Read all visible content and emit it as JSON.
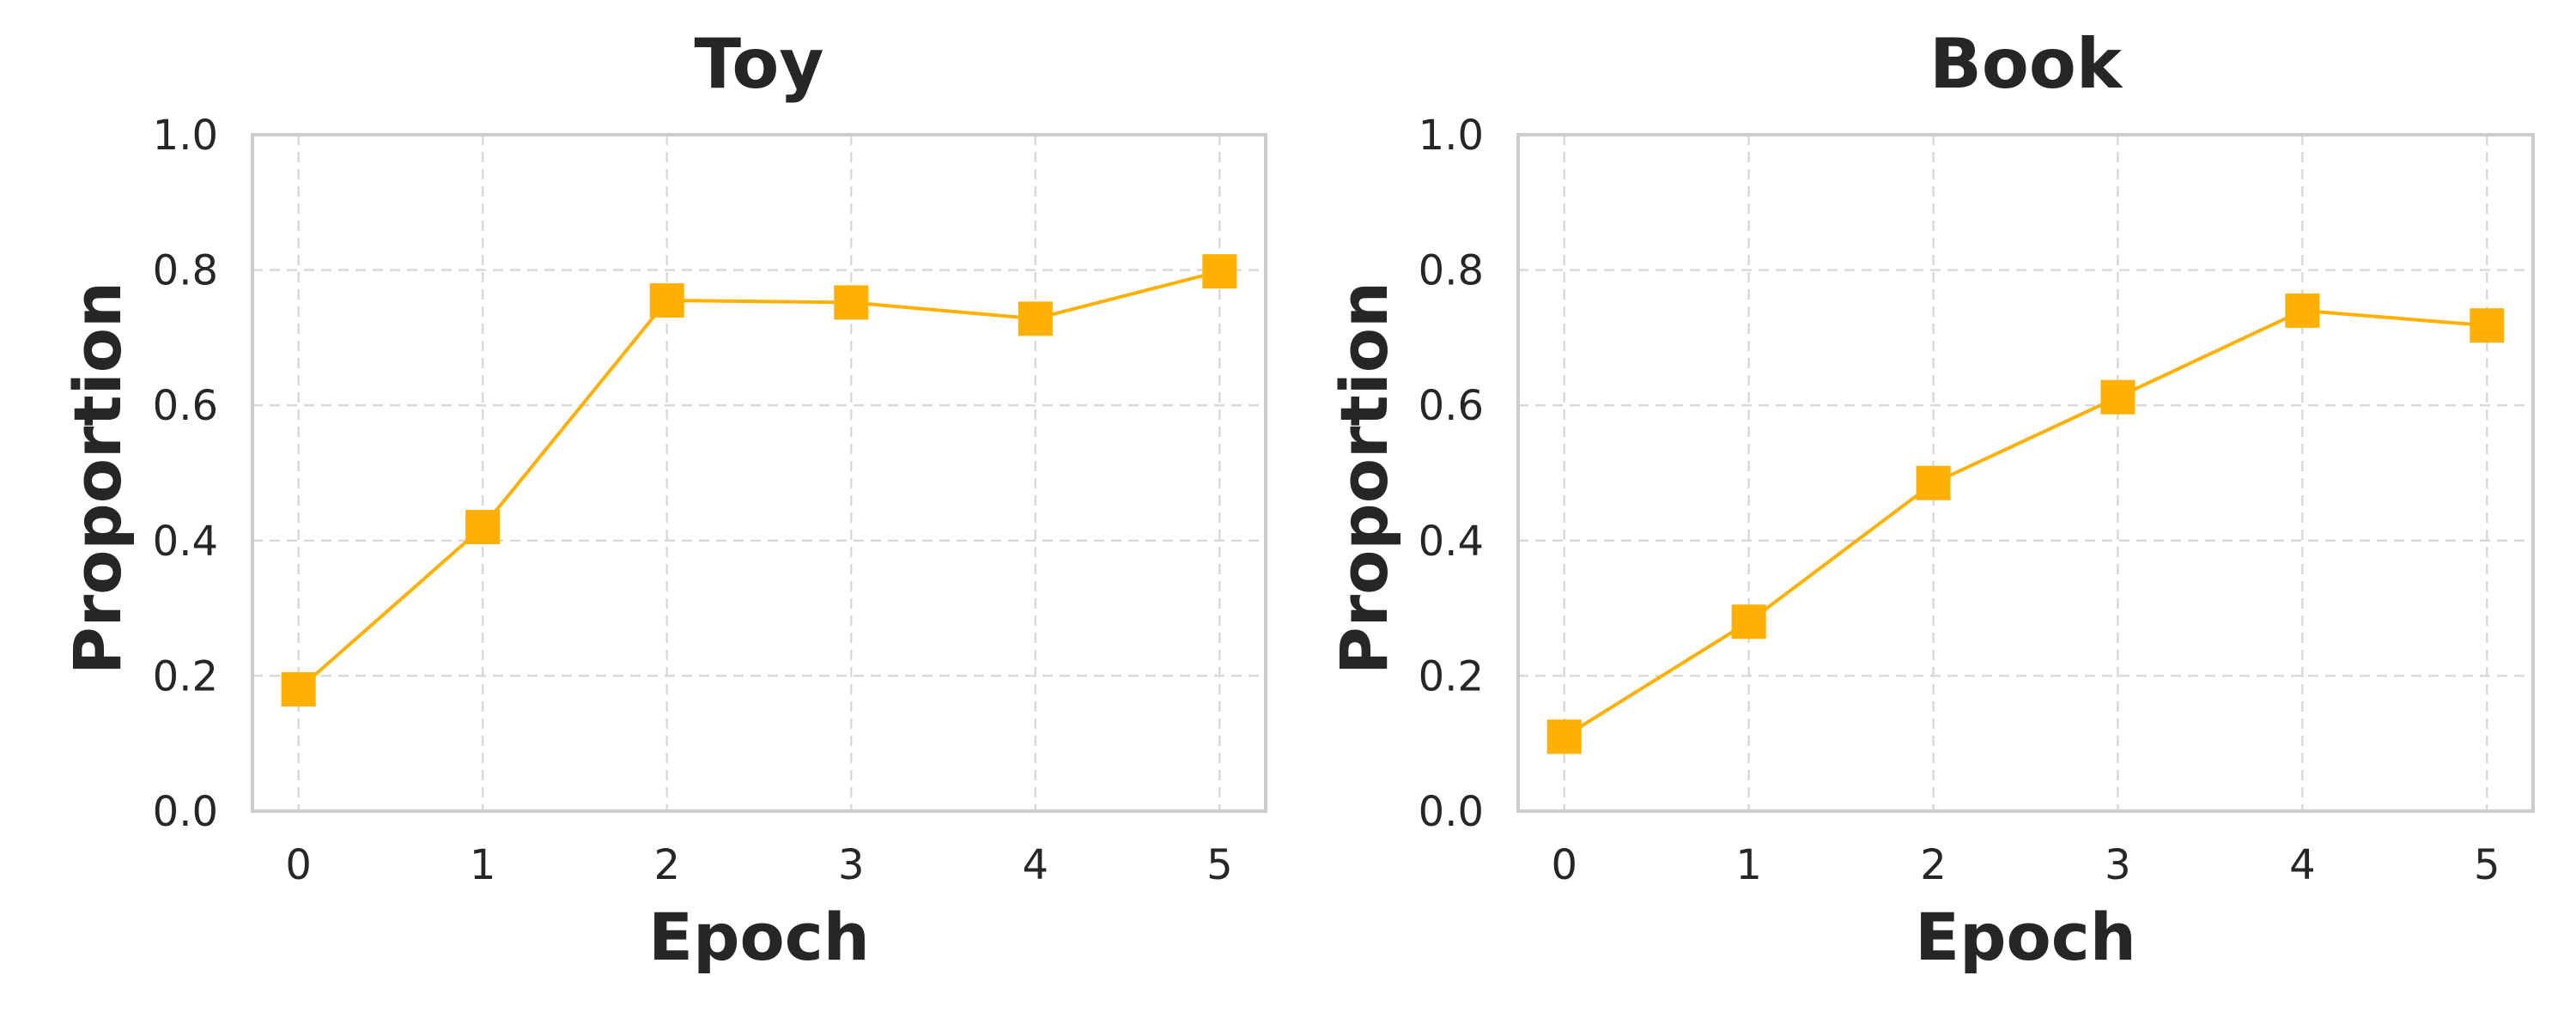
{
  "chart_data": [
    {
      "type": "line",
      "title": "Toy",
      "xlabel": "Epoch",
      "ylabel": "Proportion",
      "x": [
        0,
        1,
        2,
        3,
        4,
        5
      ],
      "series": [
        {
          "values": [
            0.18,
            0.42,
            0.755,
            0.752,
            0.728,
            0.798
          ],
          "color": "#FFB000",
          "marker": "square"
        }
      ],
      "xlim": [
        -0.25,
        5.25
      ],
      "ylim": [
        0.0,
        1.0
      ],
      "xticks": [
        "0",
        "1",
        "2",
        "3",
        "4",
        "5"
      ],
      "yticks": [
        "0.0",
        "0.2",
        "0.4",
        "0.6",
        "0.8",
        "1.0"
      ],
      "grid": true
    },
    {
      "type": "line",
      "title": "Book",
      "xlabel": "Epoch",
      "ylabel": "Proportion",
      "x": [
        0,
        1,
        2,
        3,
        4,
        5
      ],
      "series": [
        {
          "values": [
            0.11,
            0.28,
            0.485,
            0.612,
            0.74,
            0.718
          ],
          "color": "#FFB000",
          "marker": "square"
        }
      ],
      "xlim": [
        -0.25,
        5.25
      ],
      "ylim": [
        0.0,
        1.0
      ],
      "xticks": [
        "0",
        "1",
        "2",
        "3",
        "4",
        "5"
      ],
      "yticks": [
        "0.0",
        "0.2",
        "0.4",
        "0.6",
        "0.8",
        "1.0"
      ],
      "grid": true
    }
  ]
}
